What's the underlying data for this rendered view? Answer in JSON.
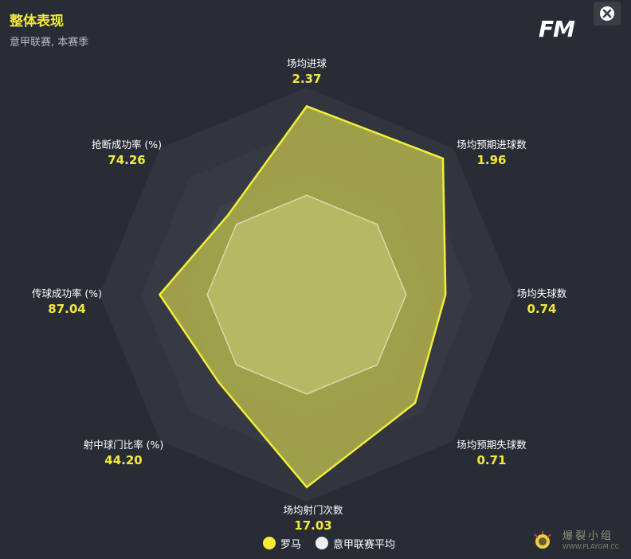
{
  "header": {
    "title": "整体表现",
    "subtitle": "意甲联赛, 本赛季",
    "logo_text": "FM"
  },
  "close_icon": "close-icon",
  "legend": [
    {
      "label": "罗马",
      "color": "#f4ee3a"
    },
    {
      "label": "意甲联赛平均",
      "color": "#eeeeee"
    }
  ],
  "watermark": {
    "text_cn": "爆裂小组",
    "url": "WWW.PLAYGM.CC"
  },
  "colors": {
    "background": "#282d35",
    "team_fill": "#a8a84a",
    "team_stroke": "#f2ee3a",
    "average_fill": "#c8cc7a",
    "average_stroke": "#d8dab0",
    "value_text": "#f4e93a"
  },
  "chart_data": {
    "type": "radar",
    "axes": [
      {
        "name": "场均进球",
        "value_label": "2.37",
        "team": 0.91,
        "average": 0.48
      },
      {
        "name": "场均预期进球数",
        "value_label": "1.96",
        "team": 0.93,
        "average": 0.48
      },
      {
        "name": "场均失球数",
        "value_label": "0.74",
        "team": 0.67,
        "average": 0.48
      },
      {
        "name": "场均预期失球数",
        "value_label": "0.71",
        "team": 0.74,
        "average": 0.48
      },
      {
        "name": "场均射门次数",
        "value_label": "17.03",
        "team": 0.93,
        "average": 0.48
      },
      {
        "name": "射中球门比率 (%)",
        "value_label": "44.20",
        "team": 0.6,
        "average": 0.48
      },
      {
        "name": "传球成功率 (%)",
        "value_label": "87.04",
        "team": 0.71,
        "average": 0.48
      },
      {
        "name": "抢断成功率 (%)",
        "value_label": "74.26",
        "team": 0.54,
        "average": 0.48
      }
    ],
    "series": [
      {
        "name": "罗马",
        "key": "team"
      },
      {
        "name": "意甲联赛平均",
        "key": "average"
      }
    ]
  }
}
